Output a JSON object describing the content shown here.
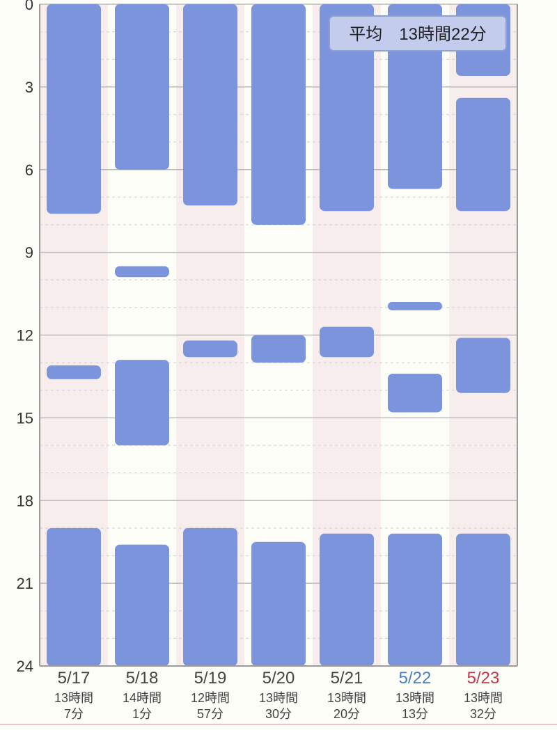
{
  "chart_data": {
    "type": "bar",
    "title": "",
    "xlabel": "",
    "ylabel": "",
    "ylim": [
      0,
      24
    ],
    "y_ticks": [
      "0",
      "3",
      "6",
      "9",
      "12",
      "15",
      "18",
      "21",
      "24"
    ],
    "y_minor_ticks": [
      1,
      2,
      4,
      5,
      7,
      8,
      10,
      11,
      13,
      14,
      16,
      17,
      19,
      20,
      22,
      23
    ],
    "grid": true,
    "y_inverted": true,
    "average_label": "平均　13時間22分",
    "legend_position": "top-right",
    "colors": {
      "bar": "#7b94db",
      "weekday_label": "#444444",
      "saturday_label": "#4a7fc1",
      "sunday_label": "#c0394d",
      "stripe_even": "#f8eded",
      "stripe_odd": "#fdfdf8",
      "major_grid": "#bdbdbd",
      "minor_grid": "#d6d6d6",
      "axis": "#9a9a9a",
      "tick_label": "#333333",
      "badge_fill": "#c3ccec",
      "badge_stroke": "#8e9fd6",
      "badge_text": "#222222"
    },
    "days": [
      {
        "label": "5/17",
        "duration_line1": "13時間",
        "duration_line2": "7分",
        "day_type": "weekday",
        "sleep_segments": [
          [
            0,
            7.6
          ],
          [
            13.1,
            13.6
          ],
          [
            19.0,
            24
          ]
        ]
      },
      {
        "label": "5/18",
        "duration_line1": "14時間",
        "duration_line2": "1分",
        "day_type": "weekday",
        "sleep_segments": [
          [
            0,
            6.0
          ],
          [
            9.5,
            9.9
          ],
          [
            12.9,
            16.0
          ],
          [
            19.6,
            24
          ]
        ]
      },
      {
        "label": "5/19",
        "duration_line1": "12時間",
        "duration_line2": "57分",
        "day_type": "weekday",
        "sleep_segments": [
          [
            0,
            7.3
          ],
          [
            12.2,
            12.8
          ],
          [
            19.0,
            24
          ]
        ]
      },
      {
        "label": "5/20",
        "duration_line1": "13時間",
        "duration_line2": "30分",
        "day_type": "weekday",
        "sleep_segments": [
          [
            0,
            8.0
          ],
          [
            12.0,
            13.0
          ],
          [
            19.5,
            24
          ]
        ]
      },
      {
        "label": "5/21",
        "duration_line1": "13時間",
        "duration_line2": "20分",
        "day_type": "weekday",
        "sleep_segments": [
          [
            0,
            7.5
          ],
          [
            11.7,
            12.8
          ],
          [
            19.2,
            24
          ]
        ]
      },
      {
        "label": "5/22",
        "duration_line1": "13時間",
        "duration_line2": "13分",
        "day_type": "saturday",
        "sleep_segments": [
          [
            0,
            6.7
          ],
          [
            10.8,
            11.1
          ],
          [
            13.4,
            14.8
          ],
          [
            19.2,
            24
          ]
        ]
      },
      {
        "label": "5/23",
        "duration_line1": "13時間",
        "duration_line2": "32分",
        "day_type": "sunday",
        "sleep_segments": [
          [
            0,
            2.6
          ],
          [
            3.4,
            7.5
          ],
          [
            12.1,
            14.1
          ],
          [
            19.2,
            24
          ]
        ]
      }
    ]
  }
}
